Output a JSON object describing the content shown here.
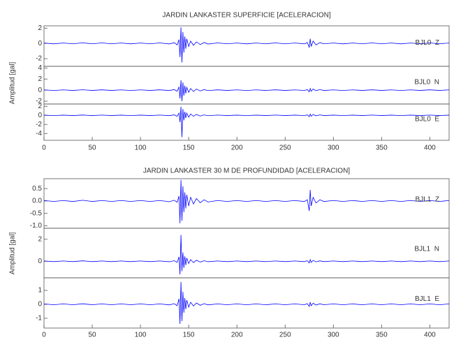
{
  "chart_data": [
    {
      "type": "line",
      "title": "JARDIN LANKASTER SUPERFICIE [ACELERACION]",
      "ylabel": "Amplitud [gal]",
      "xlim": [
        0,
        420
      ],
      "xticks": [
        0,
        50,
        100,
        150,
        200,
        250,
        300,
        350,
        400
      ],
      "x": [
        0,
        10,
        20,
        30,
        40,
        50,
        60,
        70,
        80,
        90,
        100,
        110,
        120,
        130,
        135,
        138,
        140,
        141,
        142,
        143,
        144,
        145,
        146,
        147,
        148,
        150,
        152,
        155,
        158,
        162,
        166,
        170,
        180,
        190,
        200,
        210,
        220,
        230,
        240,
        250,
        260,
        270,
        273,
        275,
        276,
        277,
        279,
        282,
        286,
        290,
        300,
        310,
        320,
        330,
        340,
        350,
        360,
        370,
        380,
        390,
        400,
        410,
        420
      ],
      "panels": [
        {
          "name": "BJL0  Z",
          "color": "#0000ff",
          "ylim": [
            -3,
            2.3
          ],
          "yticks": [
            -2,
            0,
            2
          ],
          "values": [
            0.05,
            -0.06,
            0.05,
            -0.05,
            0.07,
            -0.05,
            0.06,
            -0.05,
            0.05,
            -0.06,
            0.05,
            -0.05,
            0.06,
            -0.07,
            0.1,
            -0.2,
            0.5,
            -1.8,
            2.1,
            -2.5,
            1.5,
            -1.2,
            0.9,
            -0.7,
            0.6,
            -0.4,
            0.3,
            -0.25,
            0.2,
            -0.15,
            0.12,
            -0.08,
            0.06,
            -0.05,
            0.05,
            -0.06,
            0.05,
            -0.05,
            0.06,
            -0.05,
            0.05,
            -0.06,
            0.1,
            -0.5,
            0.6,
            -0.4,
            0.3,
            -0.2,
            0.1,
            -0.05,
            0.05,
            -0.06,
            0.05,
            -0.05,
            0.06,
            -0.05,
            0.05,
            -0.06,
            0.05,
            -0.05,
            0.06,
            -0.05,
            0.05
          ]
        },
        {
          "name": "BJL0  N",
          "color": "#0000ff",
          "ylim": [
            -2.5,
            4.3
          ],
          "yticks": [
            -2,
            0,
            2,
            4
          ],
          "values": [
            0.05,
            -0.06,
            0.05,
            -0.05,
            0.07,
            -0.05,
            0.06,
            -0.05,
            0.05,
            -0.06,
            0.05,
            -0.05,
            0.06,
            -0.07,
            0.1,
            -0.2,
            0.6,
            -1.5,
            1.8,
            -2.0,
            1.4,
            -1.0,
            0.8,
            -0.6,
            0.5,
            -0.4,
            0.3,
            -0.25,
            0.2,
            -0.15,
            0.1,
            -0.08,
            0.06,
            -0.05,
            0.05,
            -0.06,
            0.05,
            -0.05,
            0.06,
            -0.05,
            0.05,
            -0.06,
            0.1,
            -0.3,
            0.3,
            -0.2,
            0.2,
            -0.1,
            0.1,
            -0.05,
            0.05,
            -0.06,
            0.05,
            -0.05,
            0.06,
            -0.05,
            0.05,
            -0.06,
            0.05,
            -0.05,
            0.06,
            -0.05,
            0.05
          ]
        },
        {
          "name": "BJL0  E",
          "color": "#0000ff",
          "ylim": [
            -5.5,
            2.5
          ],
          "yticks": [
            -4,
            -2,
            0,
            2
          ],
          "values": [
            0.05,
            -0.06,
            0.05,
            -0.05,
            0.07,
            -0.05,
            0.06,
            -0.05,
            0.05,
            -0.06,
            0.05,
            -0.05,
            0.06,
            -0.07,
            0.1,
            -0.2,
            0.5,
            -1.5,
            1.9,
            -4.8,
            1.4,
            -1.1,
            0.8,
            -0.6,
            0.5,
            -0.4,
            0.3,
            -0.2,
            0.2,
            -0.15,
            0.1,
            -0.08,
            0.06,
            -0.05,
            0.05,
            -0.06,
            0.05,
            -0.05,
            0.06,
            -0.05,
            0.05,
            -0.06,
            0.1,
            -0.3,
            0.3,
            -0.2,
            0.2,
            -0.1,
            0.1,
            -0.05,
            0.05,
            -0.06,
            0.05,
            -0.05,
            0.06,
            -0.05,
            0.05,
            -0.06,
            0.05,
            -0.05,
            0.06,
            -0.05,
            0.05
          ]
        }
      ]
    },
    {
      "type": "line",
      "title": "JARDIN LANKASTER 30 M DE PROFUNDIDAD [ACELERACION]",
      "ylabel": "Amplitud [gal]",
      "xlim": [
        0,
        420
      ],
      "xticks": [
        0,
        50,
        100,
        150,
        200,
        250,
        300,
        350,
        400
      ],
      "x": [
        0,
        10,
        20,
        30,
        40,
        50,
        60,
        70,
        80,
        90,
        100,
        110,
        120,
        130,
        135,
        138,
        140,
        141,
        142,
        143,
        144,
        145,
        146,
        147,
        148,
        150,
        152,
        155,
        158,
        162,
        166,
        170,
        180,
        190,
        200,
        210,
        220,
        230,
        240,
        250,
        260,
        270,
        273,
        275,
        276,
        277,
        279,
        282,
        286,
        290,
        300,
        310,
        320,
        330,
        340,
        350,
        360,
        370,
        380,
        390,
        400,
        410,
        420
      ],
      "panels": [
        {
          "name": "BJL1  Z",
          "color": "#0000ff",
          "ylim": [
            -1.1,
            0.9
          ],
          "yticks": [
            {
              "value": -1,
              "label": "-1.0"
            },
            -0.5,
            {
              "value": 0,
              "label": "0.0"
            },
            0.5
          ],
          "values": [
            0.02,
            -0.02,
            0.02,
            -0.02,
            0.03,
            -0.02,
            0.02,
            -0.02,
            0.02,
            -0.02,
            0.02,
            -0.02,
            0.02,
            -0.03,
            0.03,
            -0.05,
            0.2,
            -0.9,
            0.85,
            -0.8,
            0.6,
            -0.45,
            0.35,
            -0.3,
            0.25,
            -0.2,
            0.15,
            -0.12,
            0.1,
            -0.07,
            0.05,
            -0.04,
            0.02,
            -0.02,
            0.02,
            -0.02,
            0.02,
            -0.02,
            0.02,
            -0.02,
            0.02,
            -0.02,
            0.05,
            -0.4,
            0.45,
            -0.2,
            0.15,
            -0.08,
            0.05,
            -0.02,
            0.02,
            -0.02,
            0.02,
            -0.02,
            0.02,
            -0.02,
            0.02,
            -0.02,
            0.02,
            -0.02,
            0.02,
            -0.02,
            0.02
          ]
        },
        {
          "name": "BJL1  N",
          "color": "#0000ff",
          "ylim": [
            -1.5,
            3
          ],
          "yticks": [
            0,
            2
          ],
          "values": [
            0.03,
            -0.03,
            0.03,
            -0.03,
            0.04,
            -0.03,
            0.03,
            -0.03,
            0.03,
            -0.03,
            0.03,
            -0.03,
            0.03,
            -0.04,
            0.05,
            -0.1,
            0.4,
            -1.2,
            2.4,
            -0.9,
            0.8,
            -0.6,
            0.45,
            -0.35,
            0.3,
            -0.2,
            0.15,
            -0.12,
            0.1,
            -0.07,
            0.05,
            -0.04,
            0.03,
            -0.03,
            0.03,
            -0.03,
            0.03,
            -0.03,
            0.03,
            -0.03,
            0.03,
            -0.03,
            0.05,
            -0.15,
            0.15,
            -0.1,
            0.08,
            -0.05,
            0.04,
            -0.03,
            0.03,
            -0.03,
            0.03,
            -0.03,
            0.03,
            -0.03,
            0.03,
            -0.03,
            0.03,
            -0.03,
            0.03,
            -0.03,
            0.03
          ]
        },
        {
          "name": "BJL1  E",
          "color": "#0000ff",
          "ylim": [
            -1.7,
            1.9
          ],
          "yticks": [
            -1,
            0,
            1
          ],
          "values": [
            0.03,
            -0.03,
            0.03,
            -0.03,
            0.04,
            -0.03,
            0.03,
            -0.03,
            0.03,
            -0.03,
            0.03,
            -0.03,
            0.03,
            -0.04,
            0.05,
            -0.1,
            0.4,
            -1.4,
            1.6,
            -1.2,
            0.9,
            -0.6,
            0.45,
            -0.35,
            0.3,
            -0.2,
            0.15,
            -0.12,
            0.1,
            -0.07,
            0.05,
            -0.04,
            0.03,
            -0.03,
            0.03,
            -0.03,
            0.03,
            -0.03,
            0.03,
            -0.03,
            0.03,
            -0.03,
            0.05,
            -0.15,
            0.15,
            -0.1,
            0.08,
            -0.05,
            0.04,
            -0.03,
            0.03,
            -0.03,
            0.03,
            -0.03,
            0.03,
            -0.03,
            0.03,
            -0.03,
            0.03,
            -0.03,
            0.03,
            -0.03,
            0.03
          ]
        }
      ]
    }
  ]
}
